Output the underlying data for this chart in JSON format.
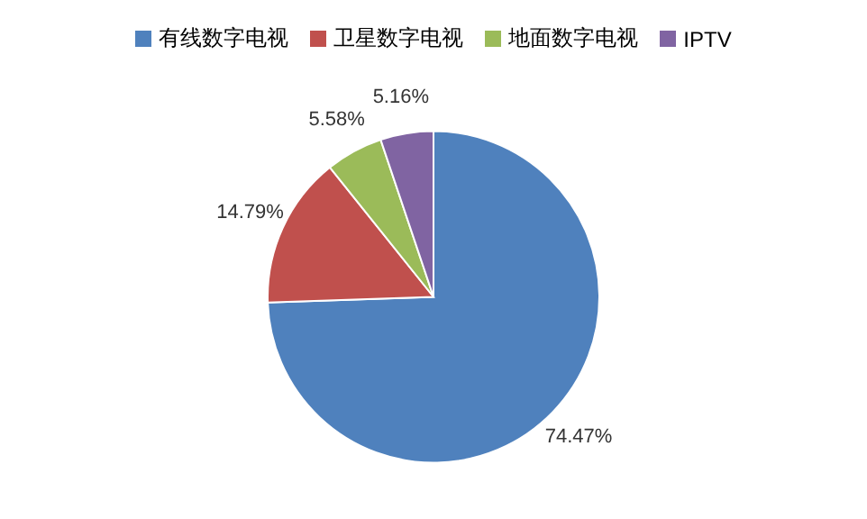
{
  "chart_data": {
    "type": "pie",
    "categories": [
      "有线数字电视",
      "卫星数字电视",
      "地面数字电视",
      "IPTV"
    ],
    "values": [
      74.47,
      14.79,
      5.58,
      5.16
    ],
    "colors": [
      "#4f81bd",
      "#c0504d",
      "#9bbb59",
      "#8064a2"
    ],
    "value_labels": [
      "74.47%",
      "14.79%",
      "5.58%",
      "5.16%"
    ],
    "legend": "top"
  }
}
